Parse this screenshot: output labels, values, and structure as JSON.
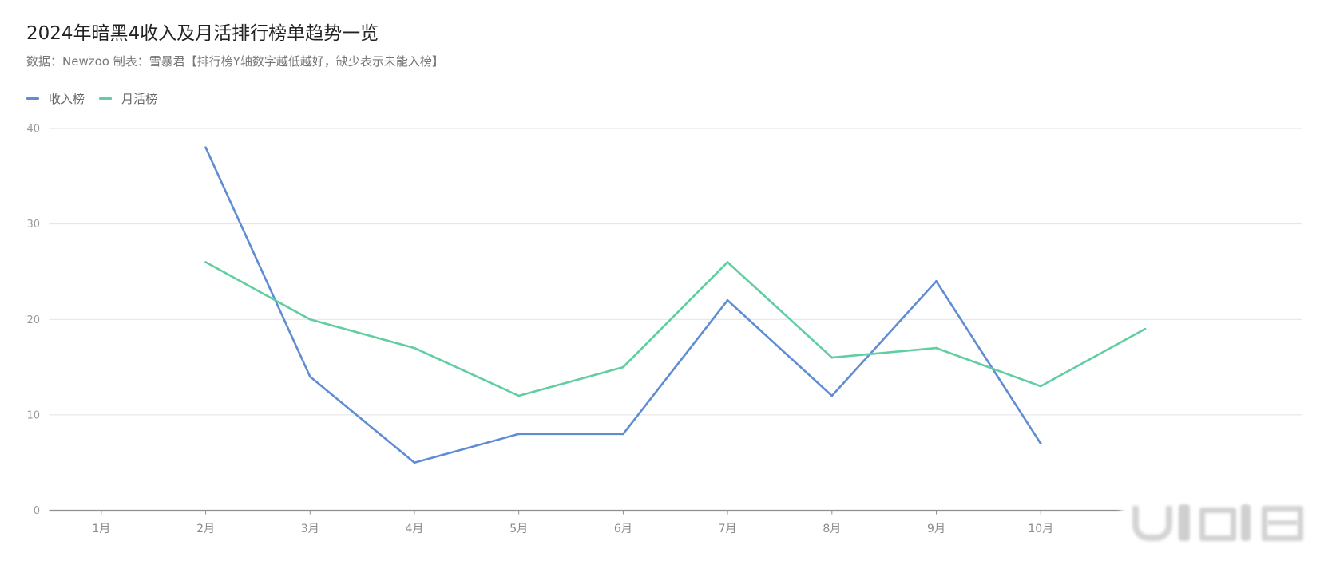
{
  "chart_data": {
    "type": "line",
    "title": "2024年暗黑4收入及月活排行榜单趋势一览",
    "subtitle": "数据：Newzoo 制表：雪暴君【排行榜Y轴数字越低越好，缺少表示未能入榜】",
    "xlabel": "",
    "ylabel": "",
    "categories": [
      "1月",
      "2月",
      "3月",
      "4月",
      "5月",
      "6月",
      "7月",
      "8月",
      "9月",
      "10月",
      "",
      ""
    ],
    "series": [
      {
        "name": "收入榜",
        "color": "#5F8CD2",
        "values": [
          null,
          38,
          14,
          5,
          8,
          8,
          22,
          12,
          24,
          7,
          null,
          null
        ]
      },
      {
        "name": "月活榜",
        "color": "#60CEA0",
        "values": [
          null,
          26,
          20,
          17,
          12,
          15,
          26,
          16,
          17,
          13,
          19,
          null
        ]
      }
    ],
    "ylim": [
      0,
      40
    ],
    "yticks": [
      0,
      10,
      20,
      30,
      40
    ],
    "grid": true,
    "legend_position": "top-left"
  }
}
